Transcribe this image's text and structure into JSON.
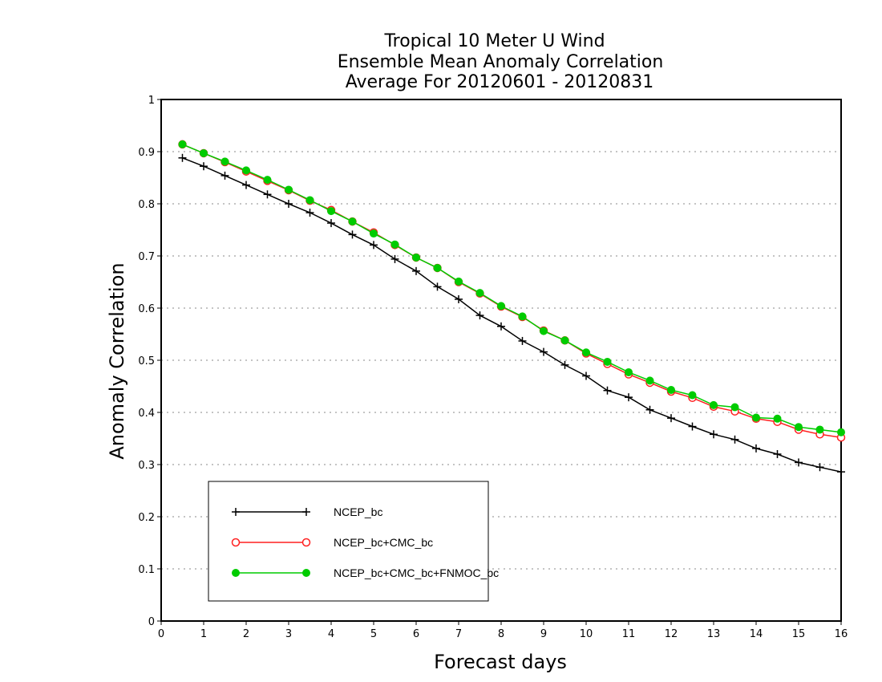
{
  "chart_data": {
    "type": "line",
    "title": [
      "Tropical 10 Meter U Wind",
      "Ensemble Mean Anomaly Correlation",
      "Average For 20120601 - 20120831"
    ],
    "xlabel": "Forecast days",
    "ylabel": "Anomaly Correlation",
    "xlim": [
      0,
      16
    ],
    "ylim": [
      0,
      1
    ],
    "x_ticks": [
      "0",
      "1",
      "2",
      "3",
      "4",
      "5",
      "6",
      "7",
      "8",
      "9",
      "10",
      "11",
      "12",
      "13",
      "14",
      "15",
      "16"
    ],
    "y_ticks": [
      "0",
      "0.1",
      "0.2",
      "0.3",
      "0.4",
      "0.5",
      "0.6",
      "0.7",
      "0.8",
      "0.9",
      "1"
    ],
    "grid": true,
    "legend_position": "bottom-left",
    "x": [
      0.5,
      1,
      1.5,
      2,
      2.5,
      3,
      3.5,
      4,
      4.5,
      5,
      5.5,
      6,
      6.5,
      7,
      7.5,
      8,
      8.5,
      9,
      9.5,
      10,
      10.5,
      11,
      11.5,
      12,
      12.5,
      13,
      13.5,
      14,
      14.5,
      15,
      15.5,
      16
    ],
    "series": [
      {
        "name": "NCEP_bc",
        "color": "#000000",
        "marker": "plus",
        "values": [
          0.888,
          0.872,
          0.854,
          0.836,
          0.818,
          0.8,
          0.783,
          0.763,
          0.741,
          0.721,
          0.694,
          0.671,
          0.641,
          0.617,
          0.586,
          0.565,
          0.537,
          0.516,
          0.491,
          0.47,
          0.442,
          0.429,
          0.405,
          0.389,
          0.373,
          0.358,
          0.348,
          0.331,
          0.32,
          0.304,
          0.295,
          0.286
        ]
      },
      {
        "name": "NCEP_bc+CMC_bc",
        "color": "#ff2020",
        "marker": "open-circle",
        "values": [
          0.914,
          0.897,
          0.88,
          0.862,
          0.844,
          0.826,
          0.806,
          0.788,
          0.766,
          0.745,
          0.721,
          0.697,
          0.677,
          0.65,
          0.628,
          0.603,
          0.583,
          0.557,
          0.538,
          0.513,
          0.493,
          0.473,
          0.457,
          0.44,
          0.428,
          0.411,
          0.402,
          0.388,
          0.382,
          0.367,
          0.358,
          0.352
        ]
      },
      {
        "name": "NCEP_bc+CMC_bc+FNMOC_bc",
        "color": "#00cc00",
        "marker": "filled-circle",
        "values": [
          0.914,
          0.897,
          0.881,
          0.864,
          0.846,
          0.827,
          0.807,
          0.786,
          0.766,
          0.743,
          0.722,
          0.697,
          0.677,
          0.651,
          0.629,
          0.604,
          0.584,
          0.556,
          0.538,
          0.515,
          0.497,
          0.477,
          0.461,
          0.443,
          0.433,
          0.414,
          0.41,
          0.39,
          0.388,
          0.372,
          0.367,
          0.362
        ]
      }
    ]
  }
}
